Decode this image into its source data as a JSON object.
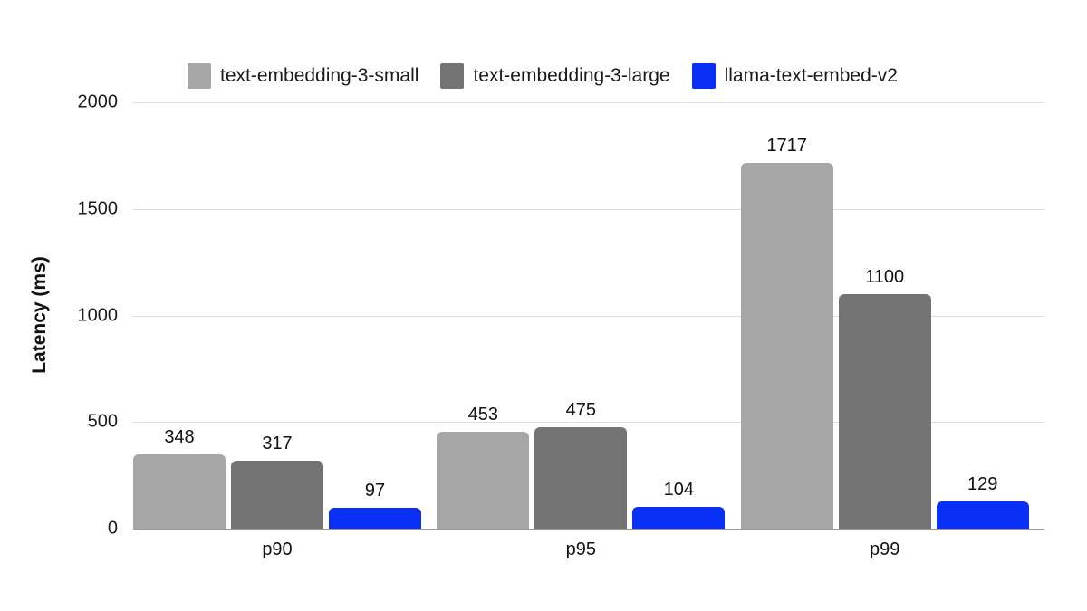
{
  "chart_data": {
    "type": "bar",
    "title": "",
    "xlabel": "",
    "ylabel": "Latency (ms)",
    "ylim": [
      0,
      2000
    ],
    "yticks": [
      0,
      500,
      1000,
      1500,
      2000
    ],
    "grid": true,
    "legend_position": "top",
    "categories": [
      "p90",
      "p95",
      "p99"
    ],
    "series": [
      {
        "name": "text-embedding-3-small",
        "color": "#a6a6a6",
        "values": [
          348,
          453,
          1717
        ]
      },
      {
        "name": "text-embedding-3-large",
        "color": "#737373",
        "values": [
          317,
          475,
          1100
        ]
      },
      {
        "name": "llama-text-embed-v2",
        "color": "#0a2ff5",
        "values": [
          97,
          104,
          129
        ]
      }
    ]
  },
  "legend": [
    {
      "label": "text-embedding-3-small",
      "color": "#a6a6a6"
    },
    {
      "label": "text-embedding-3-large",
      "color": "#737373"
    },
    {
      "label": "llama-text-embed-v2",
      "color": "#0a2ff5"
    }
  ],
  "y_axis": {
    "label": "Latency (ms)",
    "ticks": [
      "0",
      "500",
      "1000",
      "1500",
      "2000"
    ]
  },
  "x_axis": {
    "labels": [
      "p90",
      "p95",
      "p99"
    ]
  }
}
